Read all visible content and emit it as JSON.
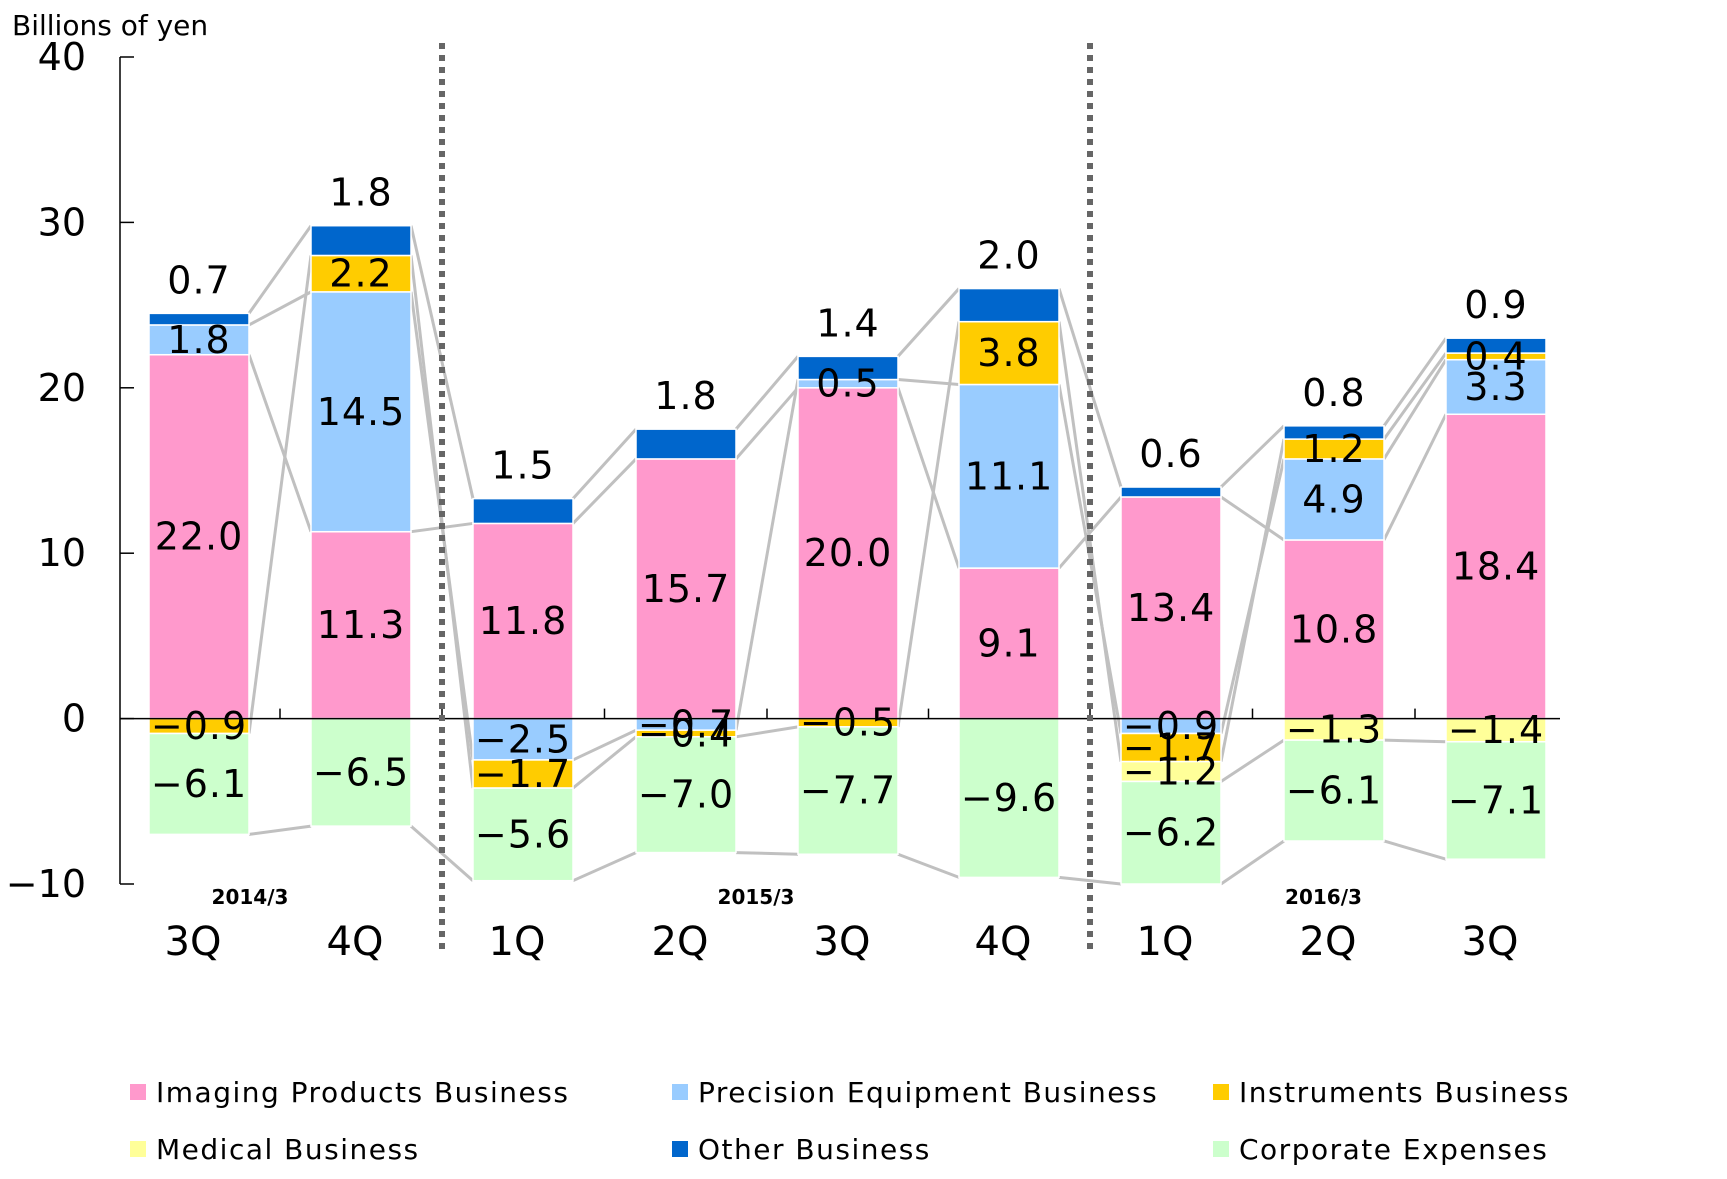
{
  "chart_data": {
    "type": "bar",
    "stacked": true,
    "ylabel": "Billions of yen",
    "ylim": [
      -10,
      40
    ],
    "yticks": [
      -10,
      0,
      10,
      20,
      30,
      40
    ],
    "ytick_labels": [
      "−10",
      "0",
      "10",
      "20",
      "30",
      "40"
    ],
    "categories": [
      "3Q",
      "4Q",
      "1Q",
      "2Q",
      "3Q",
      "4Q",
      "1Q",
      "2Q",
      "3Q"
    ],
    "fiscal_years": [
      {
        "label": "2014/3",
        "categories": [
          0,
          1
        ]
      },
      {
        "label": "2015/3",
        "categories": [
          2,
          3,
          4,
          5
        ]
      },
      {
        "label": "2016/3",
        "categories": [
          6,
          7,
          8
        ]
      }
    ],
    "series": [
      {
        "name": "Imaging Products Business",
        "color": "#ff99cc",
        "values": [
          22.0,
          11.3,
          11.8,
          15.7,
          20.0,
          9.1,
          13.4,
          10.8,
          18.4
        ],
        "labels": [
          "22.0",
          "11.3",
          "11.8",
          "15.7",
          "20.0",
          "9.1",
          "13.4",
          "10.8",
          "18.4"
        ]
      },
      {
        "name": "Precision Equipment Business",
        "color": "#99ccff",
        "values": [
          1.8,
          14.5,
          -2.5,
          -0.7,
          0.5,
          11.1,
          -0.9,
          4.9,
          3.3
        ],
        "labels": [
          "1.8",
          "14.5",
          "−2.5",
          "−0.7",
          "0.5",
          "11.1",
          "−0.9",
          "4.9",
          "3.3"
        ]
      },
      {
        "name": "Instruments Business",
        "color": "#ffcc00",
        "values": [
          -0.9,
          2.2,
          -1.7,
          -0.4,
          -0.5,
          3.8,
          -1.7,
          1.2,
          0.4
        ],
        "labels": [
          "−0.9",
          "2.2",
          "−1.7",
          "−0.4",
          "−0.5",
          "3.8",
          "−1.7",
          "1.2",
          "0.4"
        ]
      },
      {
        "name": "Medical Business",
        "color": "#ffff99",
        "values": [
          null,
          null,
          null,
          null,
          null,
          null,
          -1.2,
          -1.3,
          -1.4
        ],
        "labels": [
          "",
          "",
          "",
          "",
          "",
          "",
          "−1.2",
          "−1.3",
          "−1.4"
        ]
      },
      {
        "name": "Other Business",
        "color": "#0066cc",
        "values": [
          0.7,
          1.8,
          1.5,
          1.8,
          1.4,
          2.0,
          0.6,
          0.8,
          0.9
        ],
        "labels": [
          "0.7",
          "1.8",
          "1.5",
          "1.8",
          "1.4",
          "2.0",
          "0.6",
          "0.8",
          "0.9"
        ]
      },
      {
        "name": "Corporate Expenses",
        "color": "#ccffcc",
        "values": [
          -6.1,
          -6.5,
          -5.6,
          -7.0,
          -7.7,
          -9.6,
          -6.2,
          -6.1,
          -7.1
        ],
        "labels": [
          "−6.1",
          "−6.5",
          "−5.6",
          "−7.0",
          "−7.7",
          "−9.6",
          "−6.2",
          "−6.1",
          "−7.1"
        ]
      }
    ],
    "legend_position": "bottom",
    "grid": false
  }
}
